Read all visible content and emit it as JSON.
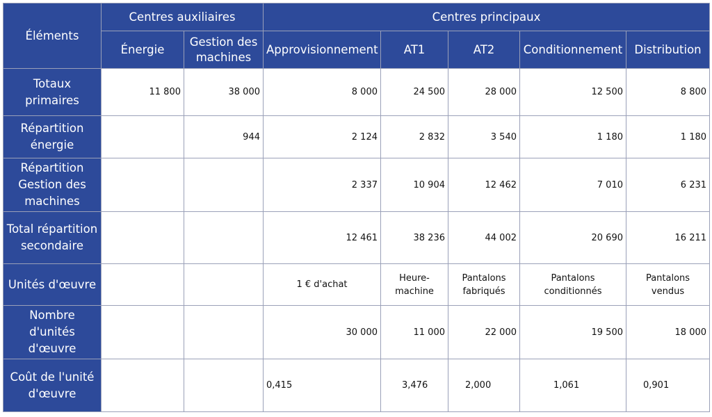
{
  "headers": {
    "elements": "Éléments",
    "aux_group": "Centres auxiliaires",
    "main_group": "Centres principaux",
    "aux": [
      "Énergie",
      "Gestion des machines"
    ],
    "main": [
      "Approvisionnement",
      "AT1",
      "AT2",
      "Conditionnement",
      "Distribution"
    ]
  },
  "rows": [
    {
      "label": "Totaux primaires",
      "cells": [
        "11 800",
        "38 000",
        "8 000",
        "24 500",
        "28 000",
        "12 500",
        "8 800"
      ]
    },
    {
      "label": "Répartition énergie",
      "cells": [
        "",
        "944",
        "2 124",
        "2 832",
        "3 540",
        "1 180",
        "1 180"
      ]
    },
    {
      "label": "Répartition Gestion des machines",
      "cells": [
        "",
        "",
        "2 337",
        "10 904",
        "12 462",
        "7 010",
        "6 231"
      ]
    },
    {
      "label": "Total répartition secondaire",
      "cells": [
        "",
        "",
        "12 461",
        "38 236",
        "44 002",
        "20 690",
        "16 211"
      ]
    },
    {
      "label": "Unités d'œuvre",
      "cells": [
        "",
        "",
        "1 € d'achat",
        "Heure-machine",
        "Pantalons fabriqués",
        "Pantalons conditionnés",
        "Pantalons vendus"
      ]
    },
    {
      "label": "Nombre d'unités d'œuvre",
      "cells": [
        "",
        "",
        "30 000",
        "11 000",
        "22 000",
        "19 500",
        "18 000"
      ]
    },
    {
      "label": "Coût de l'unité d'œuvre",
      "cells": [
        "",
        "",
        "0,415",
        "3,476",
        "2,000",
        "1,061",
        "0,901"
      ]
    }
  ]
}
